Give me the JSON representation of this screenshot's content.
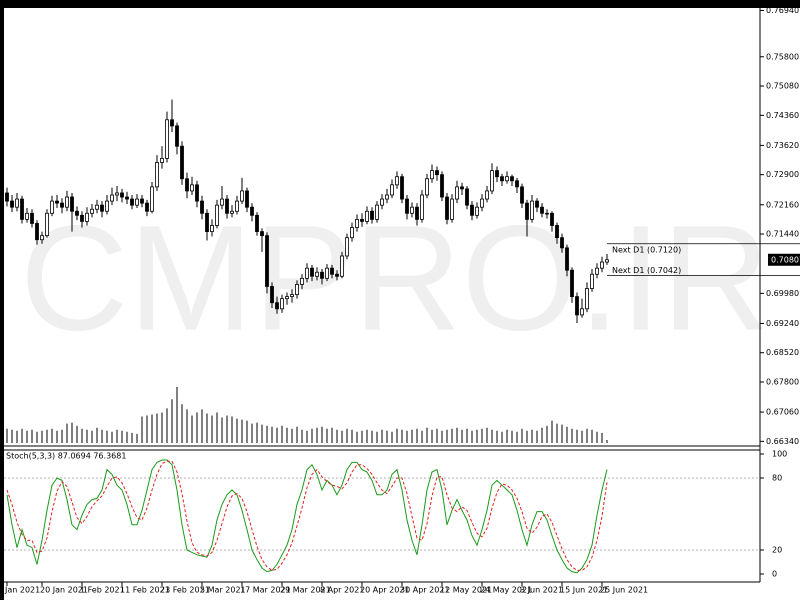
{
  "chart_data": {
    "type": "candlestick",
    "watermark": "CMPRO.IR",
    "up_color": "#ffffff",
    "down_color": "#000000",
    "ylim": [
      0.6625,
      0.77
    ],
    "yticks": [
      {
        "value": 0.7694,
        "label": "0.76940"
      },
      {
        "value": 0.758,
        "label": "0.75800"
      },
      {
        "value": 0.7508,
        "label": "0.75080"
      },
      {
        "value": 0.7436,
        "label": "0.74360"
      },
      {
        "value": 0.7362,
        "label": "0.73620"
      },
      {
        "value": 0.729,
        "label": "0.72900"
      },
      {
        "value": 0.7216,
        "label": "0.72160"
      },
      {
        "value": 0.7144,
        "label": "0.71440"
      },
      {
        "value": 0.6998,
        "label": "0.69980"
      },
      {
        "value": 0.6924,
        "label": "0.69240"
      },
      {
        "value": 0.6852,
        "label": "0.68520"
      },
      {
        "value": 0.678,
        "label": "0.67800"
      },
      {
        "value": 0.6706,
        "label": "0.67060"
      },
      {
        "value": 0.6634,
        "label": "0.66340"
      }
    ],
    "current_price": {
      "value": 0.70807,
      "label": "0.70807"
    },
    "next_levels": [
      {
        "value": 0.712,
        "label": "Next D1 (0.7120)"
      },
      {
        "value": 0.7042,
        "label": "Next D1 (0.7042)"
      }
    ],
    "categories": [
      "Jan 2021",
      null,
      null,
      null,
      null,
      null,
      null,
      "20 Jan 2021",
      null,
      null,
      null,
      null,
      null,
      null,
      null,
      "1 Feb 2021",
      null,
      null,
      null,
      null,
      null,
      null,
      null,
      "11 Feb 2021",
      null,
      null,
      null,
      null,
      null,
      null,
      null,
      "23 Feb 2021",
      null,
      null,
      null,
      null,
      null,
      null,
      null,
      "5 Mar 2021",
      null,
      null,
      null,
      null,
      null,
      null,
      null,
      "17 Mar 2021",
      null,
      null,
      null,
      null,
      null,
      null,
      null,
      "29 Mar 2021",
      null,
      null,
      null,
      null,
      null,
      null,
      null,
      "8 Apr 2021",
      null,
      null,
      null,
      null,
      null,
      null,
      null,
      "20 Apr 2021",
      null,
      null,
      null,
      null,
      null,
      null,
      null,
      "30 Apr 2021",
      null,
      null,
      null,
      null,
      null,
      null,
      null,
      "12 May 2021",
      null,
      null,
      null,
      null,
      null,
      null,
      null,
      "24 May 2021",
      null,
      null,
      null,
      null,
      null,
      null,
      null,
      "3 Jun 2021",
      null,
      null,
      null,
      null,
      null,
      null,
      null,
      "15 Jun 2021",
      null,
      null,
      null,
      null,
      null,
      null,
      null,
      "25 Jun 2021",
      null
    ],
    "ohlc": [
      [
        0.7245,
        0.7258,
        0.7212,
        0.7225
      ],
      [
        0.7225,
        0.724,
        0.7198,
        0.721
      ],
      [
        0.721,
        0.7245,
        0.72,
        0.723
      ],
      [
        0.723,
        0.7238,
        0.717,
        0.718
      ],
      [
        0.718,
        0.7208,
        0.7172,
        0.7195
      ],
      [
        0.7195,
        0.7205,
        0.716,
        0.717
      ],
      [
        0.717,
        0.7178,
        0.7118,
        0.713
      ],
      [
        0.713,
        0.715,
        0.712,
        0.714
      ],
      [
        0.714,
        0.7205,
        0.7135,
        0.7195
      ],
      [
        0.7195,
        0.7238,
        0.7188,
        0.7225
      ],
      [
        0.7225,
        0.724,
        0.7208,
        0.722
      ],
      [
        0.722,
        0.7232,
        0.7195,
        0.721
      ],
      [
        0.721,
        0.725,
        0.72,
        0.7235
      ],
      [
        0.7235,
        0.7245,
        0.715,
        0.72
      ],
      [
        0.72,
        0.7212,
        0.7178,
        0.719
      ],
      [
        0.719,
        0.72,
        0.716,
        0.7175
      ],
      [
        0.7175,
        0.721,
        0.7165,
        0.7195
      ],
      [
        0.7195,
        0.7218,
        0.7185,
        0.7205
      ],
      [
        0.7205,
        0.7228,
        0.7195,
        0.7215
      ],
      [
        0.7215,
        0.7225,
        0.7185,
        0.72
      ],
      [
        0.72,
        0.724,
        0.7192,
        0.7225
      ],
      [
        0.7225,
        0.7258,
        0.7215,
        0.724
      ],
      [
        0.724,
        0.7262,
        0.7225,
        0.7245
      ],
      [
        0.7245,
        0.7255,
        0.7222,
        0.7235
      ],
      [
        0.7235,
        0.7248,
        0.7218,
        0.723
      ],
      [
        0.723,
        0.724,
        0.7205,
        0.7215
      ],
      [
        0.7215,
        0.7242,
        0.7208,
        0.723
      ],
      [
        0.723,
        0.724,
        0.721,
        0.722
      ],
      [
        0.722,
        0.7228,
        0.7188,
        0.72
      ],
      [
        0.72,
        0.7272,
        0.7195,
        0.726
      ],
      [
        0.726,
        0.7338,
        0.725,
        0.732
      ],
      [
        0.732,
        0.736,
        0.7305,
        0.733
      ],
      [
        0.733,
        0.7445,
        0.732,
        0.7425
      ],
      [
        0.7425,
        0.7475,
        0.7395,
        0.741
      ],
      [
        0.741,
        0.7418,
        0.734,
        0.736
      ],
      [
        0.736,
        0.7372,
        0.7265,
        0.728
      ],
      [
        0.728,
        0.7295,
        0.7232,
        0.725
      ],
      [
        0.725,
        0.7285,
        0.724,
        0.7265
      ],
      [
        0.7265,
        0.7275,
        0.721,
        0.7225
      ],
      [
        0.7225,
        0.7238,
        0.718,
        0.7195
      ],
      [
        0.7195,
        0.7205,
        0.7128,
        0.715
      ],
      [
        0.715,
        0.718,
        0.7138,
        0.7165
      ],
      [
        0.7165,
        0.7228,
        0.7158,
        0.7215
      ],
      [
        0.7215,
        0.7262,
        0.7205,
        0.723
      ],
      [
        0.723,
        0.724,
        0.7182,
        0.7195
      ],
      [
        0.7195,
        0.7215,
        0.7185,
        0.72
      ],
      [
        0.72,
        0.7238,
        0.7192,
        0.7225
      ],
      [
        0.7225,
        0.7282,
        0.7218,
        0.725
      ],
      [
        0.725,
        0.7258,
        0.7198,
        0.721
      ],
      [
        0.721,
        0.722,
        0.7175,
        0.719
      ],
      [
        0.719,
        0.7198,
        0.714,
        0.715
      ],
      [
        0.715,
        0.7158,
        0.71,
        0.714
      ],
      [
        0.714,
        0.7148,
        0.6998,
        0.7015
      ],
      [
        0.7015,
        0.7025,
        0.6962,
        0.6975
      ],
      [
        0.6975,
        0.699,
        0.6948,
        0.696
      ],
      [
        0.696,
        0.6995,
        0.695,
        0.6985
      ],
      [
        0.6985,
        0.7,
        0.697,
        0.699
      ],
      [
        0.699,
        0.7008,
        0.6975,
        0.6995
      ],
      [
        0.6995,
        0.703,
        0.6985,
        0.702
      ],
      [
        0.702,
        0.7045,
        0.7008,
        0.7035
      ],
      [
        0.7035,
        0.7072,
        0.7025,
        0.706
      ],
      [
        0.706,
        0.7068,
        0.7028,
        0.704
      ],
      [
        0.704,
        0.7062,
        0.703,
        0.705
      ],
      [
        0.705,
        0.7058,
        0.702,
        0.7035
      ],
      [
        0.7035,
        0.707,
        0.7028,
        0.706
      ],
      [
        0.706,
        0.7068,
        0.7035,
        0.7045
      ],
      [
        0.7045,
        0.7055,
        0.703,
        0.704
      ],
      [
        0.704,
        0.71,
        0.7035,
        0.709
      ],
      [
        0.709,
        0.7145,
        0.7082,
        0.7135
      ],
      [
        0.7135,
        0.7172,
        0.7125,
        0.716
      ],
      [
        0.716,
        0.7192,
        0.715,
        0.718
      ],
      [
        0.718,
        0.7195,
        0.7162,
        0.7175
      ],
      [
        0.7175,
        0.7212,
        0.7168,
        0.72
      ],
      [
        0.72,
        0.721,
        0.717,
        0.718
      ],
      [
        0.718,
        0.7225,
        0.7172,
        0.7215
      ],
      [
        0.7215,
        0.7242,
        0.7205,
        0.723
      ],
      [
        0.723,
        0.7255,
        0.722,
        0.724
      ],
      [
        0.724,
        0.7278,
        0.7232,
        0.7265
      ],
      [
        0.7265,
        0.7298,
        0.7255,
        0.7285
      ],
      [
        0.7285,
        0.7292,
        0.722,
        0.723
      ],
      [
        0.723,
        0.724,
        0.718,
        0.7195
      ],
      [
        0.7195,
        0.7222,
        0.7185,
        0.721
      ],
      [
        0.721,
        0.722,
        0.7165,
        0.718
      ],
      [
        0.718,
        0.7252,
        0.7172,
        0.724
      ],
      [
        0.724,
        0.7292,
        0.7232,
        0.728
      ],
      [
        0.728,
        0.7315,
        0.727,
        0.73
      ],
      [
        0.73,
        0.731,
        0.7275,
        0.729
      ],
      [
        0.729,
        0.7298,
        0.7225,
        0.7235
      ],
      [
        0.7235,
        0.7245,
        0.7168,
        0.718
      ],
      [
        0.718,
        0.7242,
        0.7172,
        0.723
      ],
      [
        0.723,
        0.7275,
        0.722,
        0.726
      ],
      [
        0.726,
        0.727,
        0.724,
        0.7255
      ],
      [
        0.7255,
        0.7262,
        0.7205,
        0.7215
      ],
      [
        0.7215,
        0.7225,
        0.7178,
        0.719
      ],
      [
        0.719,
        0.7222,
        0.7182,
        0.721
      ],
      [
        0.721,
        0.7242,
        0.72,
        0.723
      ],
      [
        0.723,
        0.7262,
        0.7222,
        0.725
      ],
      [
        0.725,
        0.7318,
        0.7242,
        0.73
      ],
      [
        0.73,
        0.731,
        0.7272,
        0.7285
      ],
      [
        0.7285,
        0.7292,
        0.7262,
        0.7275
      ],
      [
        0.7275,
        0.7298,
        0.7268,
        0.7285
      ],
      [
        0.7285,
        0.729,
        0.7262,
        0.7275
      ],
      [
        0.7275,
        0.7282,
        0.7245,
        0.726
      ],
      [
        0.726,
        0.7268,
        0.7208,
        0.722
      ],
      [
        0.722,
        0.7228,
        0.7138,
        0.718
      ],
      [
        0.718,
        0.724,
        0.7172,
        0.7225
      ],
      [
        0.7225,
        0.7232,
        0.7198,
        0.721
      ],
      [
        0.721,
        0.722,
        0.7185,
        0.7195
      ],
      [
        0.7195,
        0.7205,
        0.7182,
        0.7195
      ],
      [
        0.7195,
        0.72,
        0.715,
        0.7165
      ],
      [
        0.7165,
        0.7172,
        0.712,
        0.7135
      ],
      [
        0.7135,
        0.7145,
        0.7098,
        0.711
      ],
      [
        0.711,
        0.7118,
        0.704,
        0.7055
      ],
      [
        0.7055,
        0.7062,
        0.6975,
        0.699
      ],
      [
        0.699,
        0.7,
        0.6925,
        0.6945
      ],
      [
        0.6945,
        0.6985,
        0.6938,
        0.696
      ],
      [
        0.696,
        0.7025,
        0.6952,
        0.701
      ],
      [
        0.701,
        0.7058,
        0.7002,
        0.7045
      ],
      [
        0.7045,
        0.7072,
        0.7035,
        0.706
      ],
      [
        0.706,
        0.7088,
        0.705,
        0.7075
      ],
      [
        0.7075,
        0.7095,
        0.7068,
        0.70807
      ]
    ],
    "volume": {
      "color": "#000000",
      "values": [
        14,
        13,
        12,
        14,
        12,
        13,
        11,
        12,
        13,
        14,
        12,
        13,
        19,
        20,
        17,
        14,
        13,
        12,
        15,
        13,
        12,
        11,
        13,
        12,
        11,
        10,
        9,
        26,
        27,
        28,
        29,
        30,
        34,
        43,
        55,
        38,
        33,
        27,
        30,
        33,
        29,
        27,
        30,
        25,
        27,
        26,
        24,
        23,
        22,
        19,
        20,
        18,
        17,
        16,
        15,
        17,
        15,
        14,
        16,
        13,
        12,
        14,
        15,
        16,
        14,
        15,
        13,
        12,
        14,
        13,
        11,
        12,
        13,
        12,
        11,
        13,
        12,
        11,
        14,
        13,
        12,
        13,
        14,
        12,
        15,
        13,
        14,
        12,
        13,
        14,
        15,
        13,
        14,
        12,
        13,
        14,
        15,
        13,
        12,
        11,
        13,
        12,
        11,
        14,
        12,
        13,
        12,
        15,
        17,
        22,
        19,
        18,
        16,
        14,
        13,
        12,
        14,
        13,
        11,
        10,
        3
      ]
    },
    "stochastic": {
      "title": "Stoch(5,3,3) 87.0694 76.3681",
      "ylim": [
        0,
        100
      ],
      "yticks": [
        100,
        80,
        20,
        0
      ],
      "levels": [
        80,
        20
      ],
      "series": [
        {
          "color": "#1a9a1a",
          "dashed": false,
          "values": [
            66,
            41,
            22,
            37,
            24,
            22,
            8,
            28,
            53,
            74,
            80,
            78,
            62,
            41,
            37,
            49,
            58,
            62,
            63,
            70,
            87,
            83,
            74,
            70,
            58,
            41,
            41,
            53,
            70,
            87,
            93,
            95,
            95,
            91,
            70,
            41,
            20,
            18,
            16,
            15,
            14,
            24,
            45,
            58,
            66,
            70,
            66,
            53,
            37,
            20,
            12,
            5,
            2,
            3,
            8,
            16,
            24,
            37,
            58,
            70,
            87,
            91,
            83,
            70,
            78,
            74,
            66,
            74,
            87,
            93,
            93,
            87,
            85,
            78,
            66,
            66,
            70,
            83,
            87,
            70,
            45,
            28,
            16,
            41,
            70,
            85,
            87,
            70,
            41,
            53,
            62,
            53,
            45,
            32,
            24,
            37,
            53,
            74,
            78,
            74,
            70,
            66,
            53,
            37,
            24,
            41,
            52,
            52,
            45,
            32,
            20,
            12,
            5,
            2,
            1,
            5,
            12,
            24,
            49,
            70,
            87.0694
          ]
        },
        {
          "color": "#e02020",
          "dashed": true,
          "values": [
            70,
            58,
            43,
            33,
            28,
            28,
            18,
            19,
            30,
            52,
            69,
            77,
            73,
            60,
            47,
            42,
            48,
            56,
            61,
            65,
            73,
            80,
            81,
            76,
            67,
            56,
            47,
            45,
            55,
            70,
            83,
            92,
            94,
            94,
            85,
            67,
            44,
            26,
            18,
            16,
            15,
            18,
            28,
            42,
            56,
            65,
            67,
            63,
            52,
            37,
            23,
            12,
            6,
            3,
            4,
            9,
            16,
            26,
            40,
            55,
            72,
            83,
            87,
            81,
            77,
            74,
            73,
            71,
            76,
            85,
            91,
            91,
            88,
            83,
            76,
            70,
            67,
            73,
            80,
            80,
            67,
            48,
            30,
            28,
            42,
            65,
            81,
            81,
            66,
            55,
            52,
            56,
            53,
            43,
            34,
            31,
            38,
            55,
            68,
            75,
            74,
            70,
            63,
            52,
            38,
            34,
            39,
            48,
            50,
            43,
            32,
            21,
            12,
            6,
            3,
            3,
            6,
            14,
            28,
            48,
            76.3681
          ]
        }
      ]
    }
  }
}
